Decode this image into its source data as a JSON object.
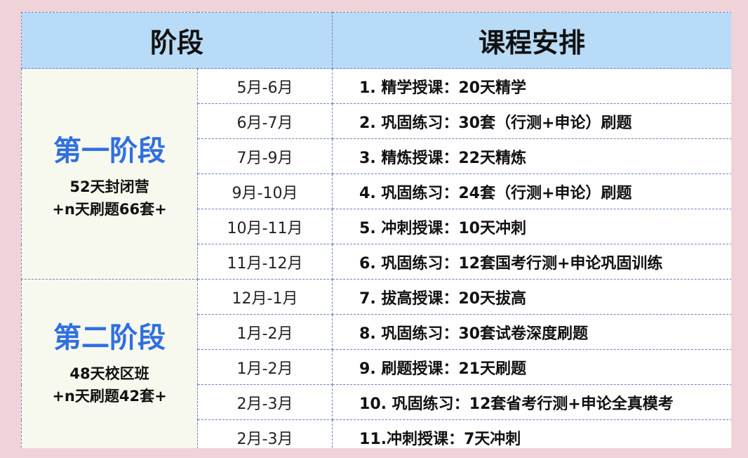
{
  "header": {
    "stage": "阶段",
    "schedule": "课程安排"
  },
  "stages": [
    {
      "title": "第一阶段",
      "sub1": "52天封闭营",
      "sub2": "+n天刷题66套+"
    },
    {
      "title": "第二阶段",
      "sub1": "48天校区班",
      "sub2": "+n天刷题42套+"
    }
  ],
  "rows": [
    {
      "date": "5月-6月",
      "course": "1. 精学授课：20天精学"
    },
    {
      "date": "6月-7月",
      "course": "2. 巩固练习：30套（行测+申论）刷题"
    },
    {
      "date": "7月-9月",
      "course": "3. 精炼授课：22天精炼"
    },
    {
      "date": "9月-10月",
      "course": "4. 巩固练习：24套（行测+申论）刷题"
    },
    {
      "date": "10月-11月",
      "course": "5. 冲刺授课：10天冲刺"
    },
    {
      "date": "11月-12月",
      "course": "6. 巩固练习：12套国考行测+申论巩固训练"
    },
    {
      "date": "12月-1月",
      "course": "7. 拔高授课：20天拔高"
    },
    {
      "date": "1月-2月",
      "course": "8. 巩固练习：30套试卷深度刷题"
    },
    {
      "date": "1月-2月",
      "course": "9. 刷题授课：21天刷题"
    },
    {
      "date": "2月-3月",
      "course": "10. 巩固练习：12套省考行测+申论全真模考"
    },
    {
      "date": "2月-3月",
      "course": "11.冲刺授课：7天冲刺"
    }
  ]
}
